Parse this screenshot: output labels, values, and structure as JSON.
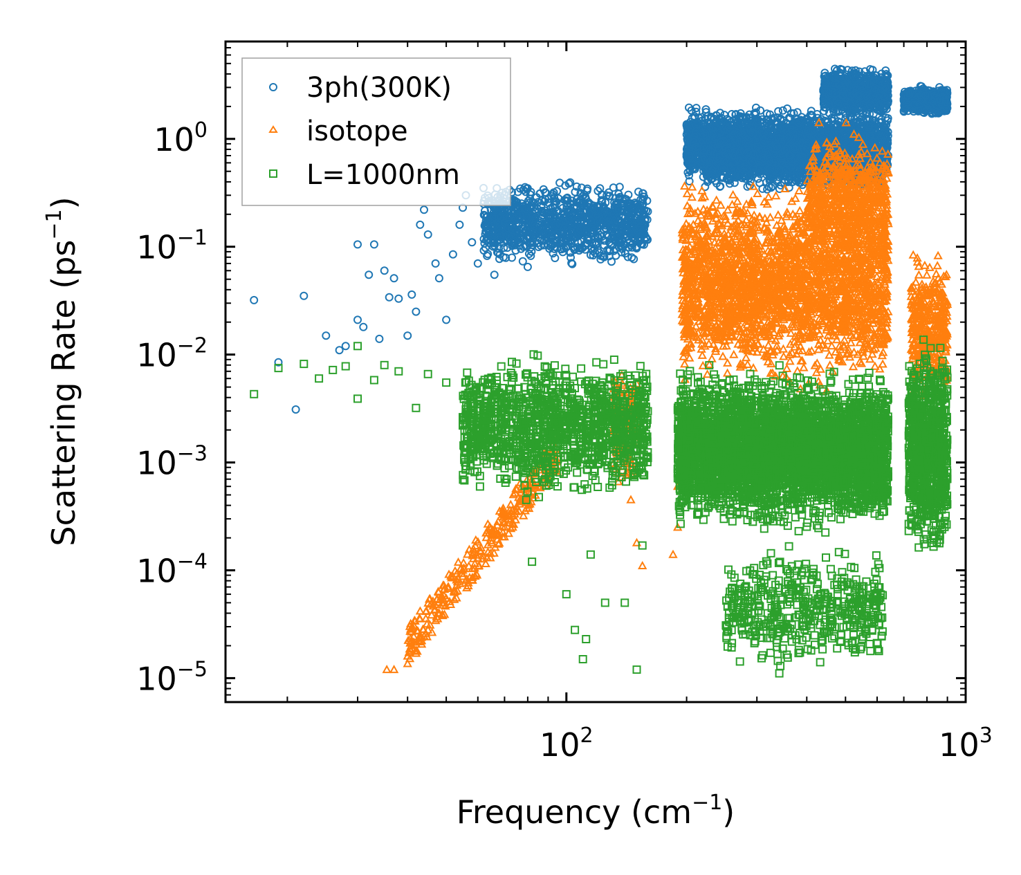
{
  "chart_data": {
    "type": "scatter",
    "xscale": "log",
    "yscale": "log",
    "xlabel": "Frequency (cm",
    "xlabel_sup": "−1",
    "xlabel_end": ")",
    "ylabel": "Scattering Rate (ps",
    "ylabel_sup": "−1",
    "ylabel_end": ")",
    "xlim": [
      14,
      1000
    ],
    "ylim": [
      6e-06,
      8
    ],
    "xticks": [
      {
        "value": 100,
        "base": "10",
        "exp": "2"
      },
      {
        "value": 1000,
        "base": "10",
        "exp": "3"
      }
    ],
    "yticks": [
      {
        "value": 1,
        "base": "10",
        "exp": "0"
      },
      {
        "value": 0.1,
        "base": "10",
        "exp": "−1"
      },
      {
        "value": 0.01,
        "base": "10",
        "exp": "−2"
      },
      {
        "value": 0.001,
        "base": "10",
        "exp": "−3"
      },
      {
        "value": 0.0001,
        "base": "10",
        "exp": "−4"
      },
      {
        "value": 1e-05,
        "base": "10",
        "exp": "−5"
      }
    ],
    "legend": {
      "position": "upper-left",
      "entries": [
        {
          "label": "3ph(300K)",
          "color": "#1f77b4",
          "marker": "circle"
        },
        {
          "label": "isotope",
          "color": "#ff7f0e",
          "marker": "triangle"
        },
        {
          "label": "L=1000nm",
          "color": "#2ca02c",
          "marker": "square"
        }
      ]
    },
    "series": [
      {
        "name": "3ph(300K)",
        "color": "#1f77b4",
        "marker": "circle",
        "points": [
          [
            16.5,
            0.032
          ],
          [
            19,
            0.0085
          ],
          [
            21,
            0.0031
          ],
          [
            22,
            0.035
          ],
          [
            25,
            0.015
          ],
          [
            27,
            0.011
          ],
          [
            28,
            0.012
          ],
          [
            30,
            0.021
          ],
          [
            30,
            0.105
          ],
          [
            31,
            0.018
          ],
          [
            32,
            0.055
          ],
          [
            33,
            0.105
          ],
          [
            34,
            0.014
          ],
          [
            35,
            0.06
          ],
          [
            36,
            0.034
          ],
          [
            37,
            0.051
          ],
          [
            38,
            0.033
          ],
          [
            40,
            0.015
          ],
          [
            41,
            0.036
          ],
          [
            42,
            0.025
          ],
          [
            43,
            0.16
          ],
          [
            44,
            0.22
          ],
          [
            45,
            0.13
          ],
          [
            47,
            0.07
          ],
          [
            48,
            0.051
          ],
          [
            50,
            0.021
          ],
          [
            52,
            0.085
          ],
          [
            54,
            0.16
          ],
          [
            55,
            0.23
          ],
          [
            56,
            0.3
          ],
          [
            58,
            0.11
          ],
          [
            60,
            0.07
          ],
          [
            62,
            0.35
          ],
          [
            64,
            0.25
          ],
          [
            66,
            0.055
          ],
          [
            68,
            0.2
          ],
          [
            70,
            0.3
          ],
          [
            72,
            0.16
          ],
          [
            75,
            0.13
          ],
          [
            78,
            0.1
          ],
          [
            80,
            0.065
          ]
        ],
        "bands": [
          {
            "x": [
              62,
              160
            ],
            "y": [
              0.06,
              0.45
            ],
            "n": 1100
          },
          {
            "x": [
              200,
              640
            ],
            "y": [
              0.35,
              2.2
            ],
            "n": 2600
          },
          {
            "x": [
              220,
              620
            ],
            "y": [
              0.3,
              1.2
            ],
            "n": 900
          },
          {
            "x": [
              440,
              640
            ],
            "y": [
              1.5,
              5.0
            ],
            "n": 700
          },
          {
            "x": [
              700,
              900
            ],
            "y": [
              1.6,
              3.2
            ],
            "n": 600
          }
        ]
      },
      {
        "name": "isotope",
        "color": "#ff7f0e",
        "marker": "triangle",
        "points": [
          [
            35.5,
            1.2e-05
          ],
          [
            37,
            1.2e-05
          ],
          [
            40,
            1.6e-05
          ],
          [
            42,
            1.8e-05
          ],
          [
            45,
            2.8e-05
          ],
          [
            48,
            4e-05
          ],
          [
            50,
            5.5e-05
          ],
          [
            55,
            0.0001
          ],
          [
            60,
            0.00013
          ],
          [
            65,
            0.00018
          ],
          [
            70,
            0.00025
          ],
          [
            75,
            0.00035
          ],
          [
            80,
            0.00045
          ],
          [
            85,
            0.0006
          ],
          [
            90,
            0.0009
          ],
          [
            95,
            0.0012
          ],
          [
            145,
            0.00045
          ],
          [
            150,
            0.00018
          ],
          [
            155,
            0.00011
          ],
          [
            185,
            0.00014
          ],
          [
            190,
            0.00025
          ],
          [
            190,
            0.0006
          ],
          [
            195,
            0.0012
          ]
        ],
        "bands": [
          {
            "x": [
              40,
              95
            ],
            "y": [
              2e-05,
              0.0012
            ],
            "n": 300,
            "trend": true
          },
          {
            "x": [
              130,
              150
            ],
            "y": [
              0.0005,
              0.01
            ],
            "n": 150
          },
          {
            "x": [
              195,
              640
            ],
            "y": [
              0.004,
              0.5
            ],
            "n": 2600
          },
          {
            "x": [
              400,
              640
            ],
            "y": [
              0.05,
              1.5
            ],
            "n": 700
          },
          {
            "x": [
              730,
              900
            ],
            "y": [
              0.003,
              0.1
            ],
            "n": 400
          }
        ]
      },
      {
        "name": "L=1000nm",
        "color": "#2ca02c",
        "marker": "square",
        "points": [
          [
            16.5,
            0.0043
          ],
          [
            19,
            0.0075
          ],
          [
            22,
            0.0082
          ],
          [
            24,
            0.006
          ],
          [
            26,
            0.0072
          ],
          [
            28,
            0.0078
          ],
          [
            30,
            0.0039
          ],
          [
            30,
            0.012
          ],
          [
            33,
            0.0058
          ],
          [
            35,
            0.008
          ],
          [
            38,
            0.007
          ],
          [
            42,
            0.0032
          ],
          [
            45,
            0.0066
          ],
          [
            50,
            0.0055
          ],
          [
            55,
            0.0022
          ],
          [
            60,
            0.0018
          ],
          [
            63,
            0.0028
          ],
          [
            70,
            0.0039
          ],
          [
            80,
            0.0012
          ],
          [
            82,
            0.00012
          ],
          [
            95,
            0.0006
          ],
          [
            100,
            6e-05
          ],
          [
            105,
            2.8e-05
          ],
          [
            110,
            1.5e-05
          ],
          [
            112,
            2.3e-05
          ],
          [
            115,
            0.00014
          ],
          [
            125,
            5e-05
          ],
          [
            140,
            5e-05
          ],
          [
            150,
            1.2e-05
          ],
          [
            155,
            0.00017
          ],
          [
            160,
            0.0011
          ]
        ],
        "bands": [
          {
            "x": [
              55,
              160
            ],
            "y": [
              0.0004,
              0.012
            ],
            "n": 1300
          },
          {
            "x": [
              190,
              640
            ],
            "y": [
              0.0002,
              0.0085
            ],
            "n": 4200
          },
          {
            "x": [
              250,
              620
            ],
            "y": [
              1e-05,
              0.0002
            ],
            "n": 500
          },
          {
            "x": [
              720,
              900
            ],
            "y": [
              0.0001,
              0.018
            ],
            "n": 900
          }
        ]
      }
    ]
  }
}
